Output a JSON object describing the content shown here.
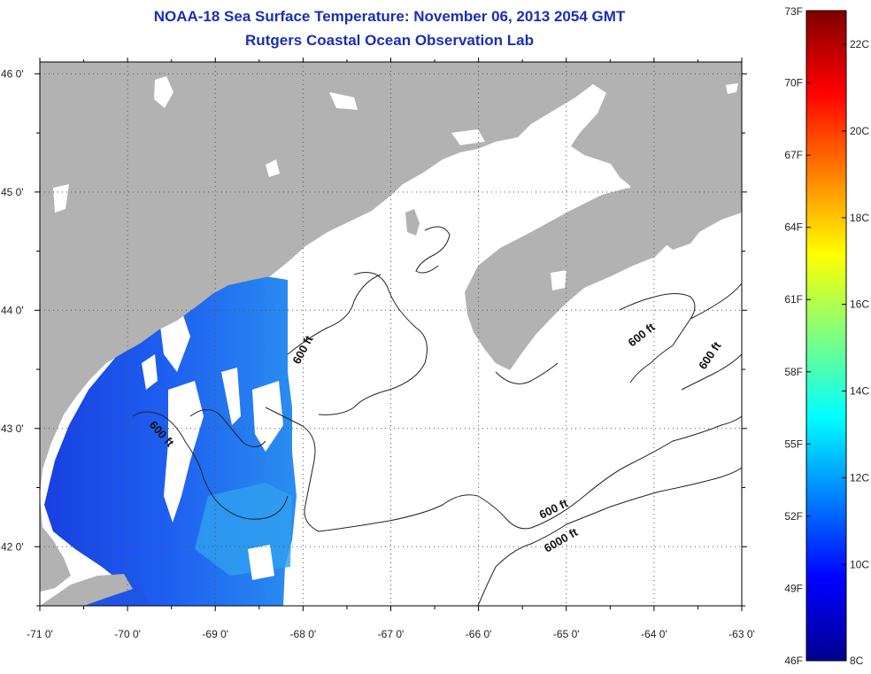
{
  "header": {
    "title": "NOAA-18 Sea Surface Temperature:  November 06, 2013 2054 GMT",
    "subtitle": "Rutgers Coastal Ocean Observation Lab"
  },
  "map": {
    "lon_labels": [
      "-71 0'",
      "-70 0'",
      "-69 0'",
      "-68 0'",
      "-67 0'",
      "-66 0'",
      "-65 0'",
      "-64 0'",
      "-63 0'"
    ],
    "lon_values": [
      -71,
      -70,
      -69,
      -68,
      -67,
      -66,
      -65,
      -64,
      -63
    ],
    "lat_labels": [
      "46 0'",
      "45 0'",
      "44 0'",
      "43 0'",
      "42 0'"
    ],
    "lat_values": [
      46,
      45,
      44,
      43,
      42
    ],
    "lon_range": [
      -71,
      -63
    ],
    "lat_range": [
      41.5,
      46.1
    ],
    "contour_labels": [
      {
        "text": "600 ft"
      },
      {
        "text": "600 ft"
      },
      {
        "text": "600 ft"
      },
      {
        "text": "600 ft"
      },
      {
        "text": "600 ft"
      },
      {
        "text": "6000 ft"
      }
    ]
  },
  "colorbar": {
    "fahrenheit_labels": [
      "73F",
      "70F",
      "67F",
      "64F",
      "61F",
      "58F",
      "55F",
      "52F",
      "49F",
      "46F"
    ],
    "fahrenheit_values": [
      73,
      70,
      67,
      64,
      61,
      58,
      55,
      52,
      49,
      46
    ],
    "celsius_labels": [
      "22C",
      "20C",
      "18C",
      "16C",
      "14C",
      "12C",
      "10C",
      "8C"
    ],
    "celsius_values": [
      22,
      20,
      18,
      16,
      14,
      12,
      10,
      8
    ],
    "range_f": [
      46,
      73
    ],
    "colors": [
      "#00008f",
      "#0000ff",
      "#007fff",
      "#00ffff",
      "#7fff7f",
      "#ffff00",
      "#ff7f00",
      "#ff0000",
      "#7f0000"
    ]
  },
  "colors": {
    "land": "#b2b2b2",
    "ocean_nodata": "#ffffff",
    "contour": "#222222",
    "title": "#1a2fb4"
  }
}
